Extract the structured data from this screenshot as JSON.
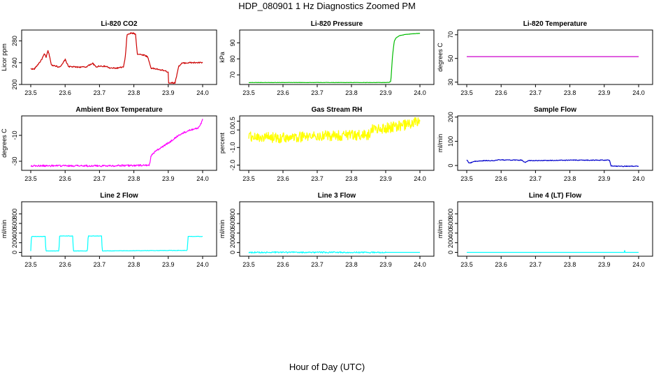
{
  "title": "HDP_080901  1 Hz Diagnostics Zoomed PM",
  "xlabel": "Hour of Day (UTC)",
  "chart_data": [
    {
      "type": "line",
      "title": "Li-820 CO2",
      "ylabel": "Licor ppm",
      "color": "#cc0000",
      "xlim": [
        23.5,
        24.0
      ],
      "ylim": [
        200,
        300
      ],
      "xticks": [
        "23.5",
        "23.6",
        "23.7",
        "23.8",
        "23.9",
        "24.0"
      ],
      "yticks": [
        "200",
        "240",
        "280"
      ],
      "noise": 1.2,
      "x": [
        23.5,
        23.51,
        23.52,
        23.53,
        23.54,
        23.545,
        23.55,
        23.555,
        23.56,
        23.57,
        23.58,
        23.59,
        23.6,
        23.61,
        23.63,
        23.66,
        23.68,
        23.69,
        23.7,
        23.72,
        23.73,
        23.75,
        23.77,
        23.775,
        23.78,
        23.79,
        23.8,
        23.805,
        23.81,
        23.83,
        23.84,
        23.85,
        23.87,
        23.875,
        23.88,
        23.9,
        23.901,
        23.92,
        23.93,
        23.94,
        23.96,
        24.0
      ],
      "y": [
        229,
        228,
        236,
        244,
        256,
        250,
        262,
        252,
        235,
        235,
        232,
        235,
        246,
        233,
        232,
        232,
        239,
        232,
        234,
        233,
        230,
        230,
        232,
        250,
        291,
        294,
        294,
        292,
        256,
        254,
        251,
        230,
        228,
        226,
        227,
        223,
        203,
        203,
        233,
        239,
        240,
        240
      ]
    },
    {
      "type": "line",
      "title": "Li-820 Pressure",
      "ylabel": "kPa",
      "color": "#00bb00",
      "xlim": [
        23.5,
        24.0
      ],
      "ylim": [
        64,
        98
      ],
      "xticks": [
        "23.5",
        "23.6",
        "23.7",
        "23.8",
        "23.9",
        "24.0"
      ],
      "yticks": [
        "70",
        "80",
        "90"
      ],
      "noise": 0.1,
      "x": [
        23.5,
        23.8,
        23.9,
        23.91,
        23.915,
        23.92,
        23.925,
        23.93,
        23.94,
        23.96,
        24.0
      ],
      "y": [
        65.2,
        65.2,
        65.2,
        65.3,
        66,
        82,
        91,
        93,
        94.5,
        95.3,
        96
      ]
    },
    {
      "type": "line",
      "title": "Li-820 Temperature",
      "ylabel": "degrees C",
      "color": "#cc00cc",
      "xlim": [
        23.5,
        24.0
      ],
      "ylim": [
        28,
        74
      ],
      "xticks": [
        "23.5",
        "23.6",
        "23.7",
        "23.8",
        "23.9",
        "24.0"
      ],
      "yticks": [
        "30",
        "50",
        "70"
      ],
      "noise": 0,
      "x": [
        23.5,
        24.0
      ],
      "y": [
        51.5,
        51.5
      ]
    },
    {
      "type": "line",
      "title": "Ambient Box Temperature",
      "ylabel": "degrees C",
      "color": "#ff00ff",
      "xlim": [
        23.5,
        24.0
      ],
      "ylim": [
        -37,
        5
      ],
      "xticks": [
        "23.5",
        "23.6",
        "23.7",
        "23.8",
        "23.9",
        "24.0"
      ],
      "yticks": [
        "-30",
        "-10"
      ],
      "noise": 0.7,
      "x": [
        23.5,
        23.7,
        23.83,
        23.845,
        23.85,
        23.855,
        23.87,
        23.9,
        23.93,
        23.96,
        23.99,
        24.0
      ],
      "y": [
        -33.5,
        -33.5,
        -33.2,
        -33,
        -26,
        -24,
        -21,
        -16,
        -10,
        -6,
        -4,
        2
      ]
    },
    {
      "type": "line",
      "title": "Gas Stream RH",
      "ylabel": "percent",
      "color": "#ffff00",
      "xlim": [
        23.5,
        24.0
      ],
      "ylim": [
        -2.3,
        0.8
      ],
      "xticks": [
        "23.5",
        "23.6",
        "23.7",
        "23.8",
        "23.9",
        "24.0"
      ],
      "yticks": [
        "-2.0",
        "-1.0",
        "0.0",
        "0.5"
      ],
      "noise": 0.3,
      "x": [
        23.5,
        23.6,
        23.7,
        23.8,
        23.85,
        23.86,
        23.9,
        23.95,
        24.0
      ],
      "y": [
        -0.4,
        -0.45,
        -0.35,
        -0.3,
        -0.3,
        0.0,
        0.1,
        0.25,
        0.5
      ]
    },
    {
      "type": "line",
      "title": "Sample Flow",
      "ylabel": "ml/min",
      "color": "#0000cc",
      "xlim": [
        23.5,
        24.0
      ],
      "ylim": [
        -20,
        205
      ],
      "xticks": [
        "23.5",
        "23.6",
        "23.7",
        "23.8",
        "23.9",
        "24.0"
      ],
      "yticks": [
        "0",
        "100",
        "200"
      ],
      "noise": 1.5,
      "x": [
        23.5,
        23.505,
        23.51,
        23.52,
        23.55,
        23.58,
        23.59,
        23.6,
        23.66,
        23.67,
        23.68,
        23.8,
        23.915,
        23.92,
        23.94,
        24.0
      ],
      "y": [
        24,
        13,
        10,
        17,
        20,
        20,
        23,
        23,
        22,
        12,
        20,
        22,
        22,
        -2,
        -3,
        -3
      ]
    },
    {
      "type": "line",
      "title": "Line 2 Flow",
      "ylabel": "ml/min",
      "color": "#00ffff",
      "xlim": [
        23.5,
        24.0
      ],
      "ylim": [
        -80,
        1050
      ],
      "xticks": [
        "23.5",
        "23.6",
        "23.7",
        "23.8",
        "23.9",
        "24.0"
      ],
      "yticks": [
        "0",
        "200",
        "400",
        "600",
        "800"
      ],
      "noise": 4,
      "x": [
        23.5,
        23.502,
        23.542,
        23.544,
        23.582,
        23.584,
        23.622,
        23.624,
        23.665,
        23.667,
        23.706,
        23.708,
        23.9,
        23.955,
        23.958,
        24.0
      ],
      "y": [
        30,
        330,
        330,
        30,
        30,
        340,
        340,
        30,
        30,
        340,
        340,
        30,
        40,
        40,
        330,
        330
      ]
    },
    {
      "type": "line",
      "title": "Line 3 Flow",
      "ylabel": "ml/min",
      "color": "#00ffff",
      "xlim": [
        23.5,
        24.0
      ],
      "ylim": [
        -80,
        1050
      ],
      "xticks": [
        "23.5",
        "23.6",
        "23.7",
        "23.8",
        "23.9",
        "24.0"
      ],
      "yticks": [
        "0",
        "200",
        "400",
        "600",
        "800"
      ],
      "noise": 14,
      "x": [
        23.5,
        23.9,
        23.9001,
        24.0
      ],
      "y": [
        0,
        0,
        0,
        0
      ]
    },
    {
      "type": "line",
      "title": "Line 4 (LT) Flow",
      "ylabel": "ml/min",
      "color": "#00ffff",
      "xlim": [
        23.5,
        24.0
      ],
      "ylim": [
        -80,
        1050
      ],
      "xticks": [
        "23.5",
        "23.6",
        "23.7",
        "23.8",
        "23.9",
        "24.0"
      ],
      "yticks": [
        "0",
        "200",
        "400",
        "600",
        "800"
      ],
      "noise": 0,
      "x": [
        23.5,
        23.958,
        23.959,
        23.96,
        24.0
      ],
      "y": [
        0,
        0,
        60,
        0,
        0
      ]
    }
  ]
}
